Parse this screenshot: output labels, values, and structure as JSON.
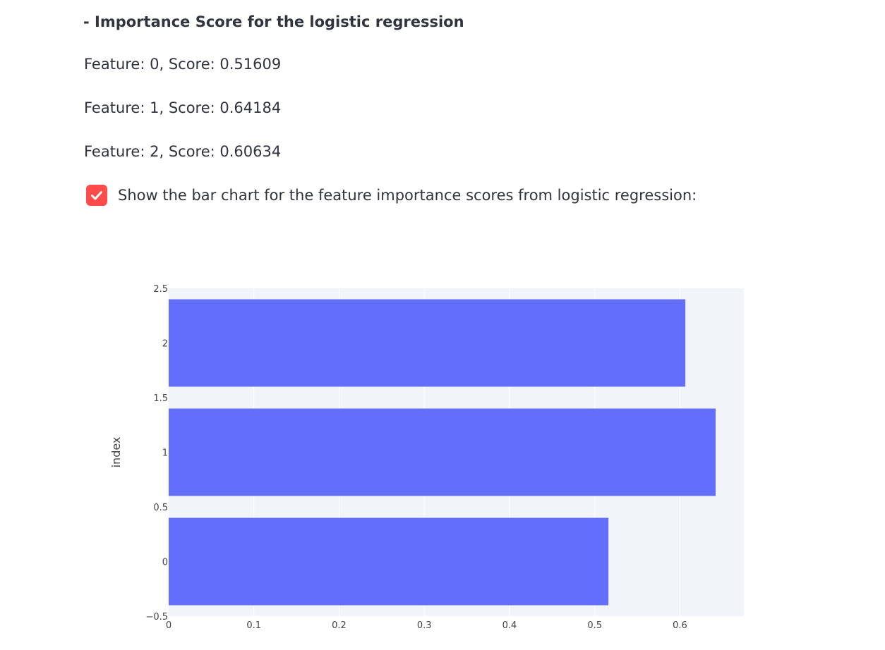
{
  "heading": "- Importance Score for the logistic regression",
  "scores": [
    "Feature: 0, Score: 0.51609",
    "Feature: 1, Score: 0.64184",
    "Feature: 2, Score: 0.60634"
  ],
  "checkbox": {
    "label": "Show the bar chart for the feature importance scores from logistic regression:",
    "checked": true
  },
  "colors": {
    "accent": "#ff4b4b",
    "bar": "#636efa",
    "plot_bg": "#e5ecf6",
    "text": "#31333f"
  },
  "chart_data": {
    "type": "bar",
    "orientation": "horizontal",
    "categories": [
      0,
      1,
      2
    ],
    "values": [
      0.51609,
      0.64184,
      0.60634
    ],
    "title": "",
    "xlabel": "",
    "ylabel": "index",
    "xlim": [
      0,
      0.675
    ],
    "ylim": [
      -0.5,
      2.5
    ],
    "x_ticks": [
      "0",
      "0.1",
      "0.2",
      "0.3",
      "0.4",
      "0.5",
      "0.6"
    ],
    "y_ticks": [
      "−0.5",
      "0",
      "0.5",
      "1",
      "1.5",
      "2",
      "2.5"
    ],
    "grid": true,
    "legend": "none"
  }
}
